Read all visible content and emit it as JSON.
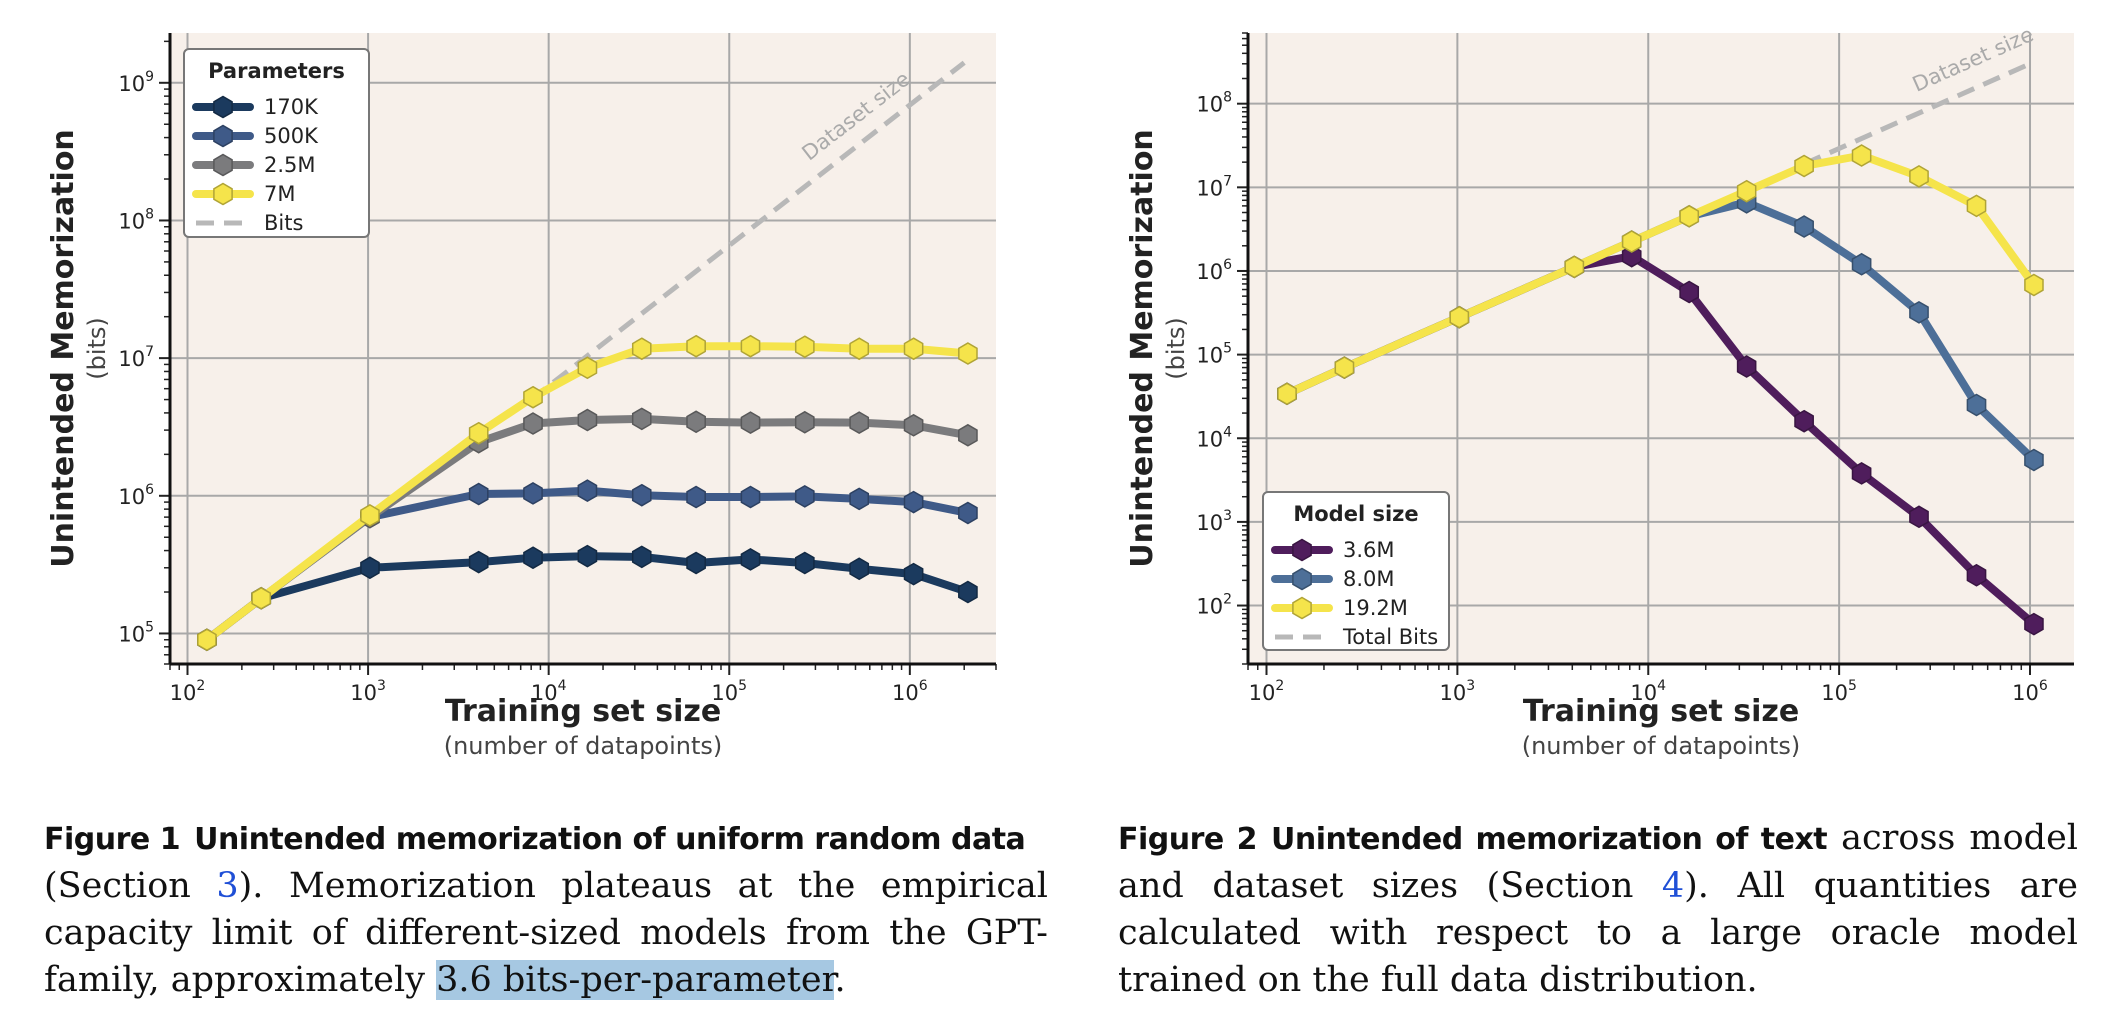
{
  "colors": {
    "plot_bg": "#f7f0ea",
    "grid": "#a8a8a8",
    "text": "#222222",
    "dataset_line": "#b8b8b8",
    "link": "#1f4fd6",
    "highlight": "#a6c8e2"
  },
  "chart_data": [
    {
      "type": "line",
      "xlabel": "Training set size",
      "xlabel_sub": "(number of datapoints)",
      "ylabel": "Unintended Memorization",
      "ylabel_sub": "(bits)",
      "x_scale": "log",
      "y_scale": "log",
      "xlim": [
        80,
        3000000
      ],
      "ylim": [
        60000,
        2300000000
      ],
      "x_ticks": [
        100,
        1000,
        10000,
        100000,
        1000000
      ],
      "x_tick_labels": [
        {
          "base": "10",
          "exp": "2"
        },
        {
          "base": "10",
          "exp": "3"
        },
        {
          "base": "10",
          "exp": "4"
        },
        {
          "base": "10",
          "exp": "5"
        },
        {
          "base": "10",
          "exp": "6"
        }
      ],
      "y_ticks": [
        100000,
        1000000,
        10000000,
        100000000,
        1000000000
      ],
      "y_tick_labels": [
        {
          "base": "10",
          "exp": "5"
        },
        {
          "base": "10",
          "exp": "6"
        },
        {
          "base": "10",
          "exp": "7"
        },
        {
          "base": "10",
          "exp": "8"
        },
        {
          "base": "10",
          "exp": "9"
        }
      ],
      "grid": true,
      "legend": {
        "title": "Parameters",
        "placement": "top-left",
        "entries": [
          "170K",
          "500K",
          "2.5M",
          "7M",
          "Bits"
        ]
      },
      "dataset_line": {
        "label": "Dataset size",
        "points": [
          [
            8000,
            5000000
          ],
          [
            2000000,
            1400000000
          ]
        ]
      },
      "series": [
        {
          "name": "170K",
          "color": "#1b3a5e",
          "points": [
            [
              128,
              90000
            ],
            [
              256,
              180000
            ],
            [
              1024,
              300000
            ],
            [
              4096,
              330000
            ],
            [
              8192,
              355000
            ],
            [
              16384,
              365000
            ],
            [
              32768,
              360000
            ],
            [
              65536,
              325000
            ],
            [
              131072,
              345000
            ],
            [
              262144,
              325000
            ],
            [
              524288,
              295000
            ],
            [
              1048576,
              270000
            ],
            [
              2097152,
              200000
            ]
          ]
        },
        {
          "name": "500K",
          "color": "#3f5a88",
          "points": [
            [
              128,
              90000
            ],
            [
              256,
              180000
            ],
            [
              1024,
              700000
            ],
            [
              4096,
              1030000
            ],
            [
              8192,
              1040000
            ],
            [
              16384,
              1090000
            ],
            [
              32768,
              1010000
            ],
            [
              65536,
              980000
            ],
            [
              131072,
              980000
            ],
            [
              262144,
              990000
            ],
            [
              524288,
              950000
            ],
            [
              1048576,
              900000
            ],
            [
              2097152,
              750000
            ]
          ]
        },
        {
          "name": "2.5M",
          "color": "#7b7b7d",
          "points": [
            [
              128,
              90000
            ],
            [
              256,
              180000
            ],
            [
              1024,
              700000
            ],
            [
              4096,
              2450000
            ],
            [
              8192,
              3350000
            ],
            [
              16384,
              3550000
            ],
            [
              32768,
              3620000
            ],
            [
              65536,
              3450000
            ],
            [
              131072,
              3400000
            ],
            [
              262144,
              3420000
            ],
            [
              524288,
              3400000
            ],
            [
              1048576,
              3250000
            ],
            [
              2097152,
              2750000
            ]
          ]
        },
        {
          "name": "7M",
          "color": "#f5e44b",
          "points": [
            [
              128,
              90000
            ],
            [
              256,
              180000
            ],
            [
              1024,
              720000
            ],
            [
              4096,
              2850000
            ],
            [
              8192,
              5200000
            ],
            [
              16384,
              8500000
            ],
            [
              32768,
              11700000
            ],
            [
              65536,
              12200000
            ],
            [
              131072,
              12200000
            ],
            [
              262144,
              12100000
            ],
            [
              524288,
              11700000
            ],
            [
              1048576,
              11700000
            ],
            [
              2097152,
              10800000
            ]
          ]
        }
      ]
    },
    {
      "type": "line",
      "xlabel": "Training set size",
      "xlabel_sub": "(number of datapoints)",
      "ylabel": "Unintended Memorization",
      "ylabel_sub": "(bits)",
      "x_scale": "log",
      "y_scale": "log",
      "xlim": [
        80,
        1700000
      ],
      "ylim": [
        20,
        700000000
      ],
      "x_ticks": [
        100,
        1000,
        10000,
        100000,
        1000000
      ],
      "x_tick_labels": [
        {
          "base": "10",
          "exp": "2"
        },
        {
          "base": "10",
          "exp": "3"
        },
        {
          "base": "10",
          "exp": "4"
        },
        {
          "base": "10",
          "exp": "5"
        },
        {
          "base": "10",
          "exp": "6"
        }
      ],
      "y_ticks": [
        100,
        1000,
        10000,
        100000,
        1000000,
        10000000,
        100000000
      ],
      "y_tick_labels": [
        {
          "base": "10",
          "exp": "2"
        },
        {
          "base": "10",
          "exp": "3"
        },
        {
          "base": "10",
          "exp": "4"
        },
        {
          "base": "10",
          "exp": "5"
        },
        {
          "base": "10",
          "exp": "6"
        },
        {
          "base": "10",
          "exp": "7"
        },
        {
          "base": "10",
          "exp": "8"
        }
      ],
      "grid": true,
      "legend": {
        "title": "Model size",
        "placement": "bottom-left",
        "entries": [
          "3.6M",
          "8.0M",
          "19.2M",
          "Total Bits"
        ]
      },
      "dataset_line": {
        "label": "Dataset size",
        "points": [
          [
            65536,
            19000000
          ],
          [
            1000000,
            300000000
          ]
        ]
      },
      "series": [
        {
          "name": "3.6M",
          "color": "#4f1d5c",
          "points": [
            [
              128,
              34000
            ],
            [
              256,
              70000
            ],
            [
              1024,
              280000
            ],
            [
              4096,
              1120000
            ],
            [
              8192,
              1500000
            ],
            [
              16384,
              560000
            ],
            [
              32768,
              72000
            ],
            [
              65536,
              16000
            ],
            [
              131072,
              3800
            ],
            [
              262144,
              1150
            ],
            [
              524288,
              230
            ],
            [
              1048576,
              60
            ]
          ]
        },
        {
          "name": "8.0M",
          "color": "#4d6f98",
          "points": [
            [
              128,
              34000
            ],
            [
              256,
              70000
            ],
            [
              1024,
              280000
            ],
            [
              4096,
              1120000
            ],
            [
              8192,
              2250000
            ],
            [
              16384,
              4500000
            ],
            [
              32768,
              6600000
            ],
            [
              65536,
              3400000
            ],
            [
              131072,
              1200000
            ],
            [
              262144,
              320000
            ],
            [
              524288,
              25000
            ],
            [
              1048576,
              5500
            ]
          ]
        },
        {
          "name": "19.2M",
          "color": "#f5e44b",
          "points": [
            [
              128,
              34000
            ],
            [
              256,
              70000
            ],
            [
              1024,
              280000
            ],
            [
              4096,
              1120000
            ],
            [
              8192,
              2250000
            ],
            [
              16384,
              4500000
            ],
            [
              32768,
              9000000
            ],
            [
              65536,
              18000000
            ],
            [
              131072,
              24000000
            ],
            [
              262144,
              13500000
            ],
            [
              524288,
              6000000
            ],
            [
              1048576,
              680000
            ]
          ]
        }
      ]
    }
  ],
  "captions": {
    "fig1": {
      "label": "Figure 1",
      "title": "Unintended memorization of uniform random data",
      "t1": "(Section ",
      "ref": "3",
      "t2": ").  Memorization plateaus at the empirical capacity limit of different-sized models from the GPT-family, approximately ",
      "highlight": "3.6 bits-per-parameter",
      "t3": "."
    },
    "fig2": {
      "label": "Figure 2",
      "title": "Unintended memorization of text",
      "t1": " across model and dataset sizes (Section ",
      "ref": "4",
      "t2": "). All quantities are calculated with respect to a large oracle model trained on the full data distribution."
    }
  }
}
